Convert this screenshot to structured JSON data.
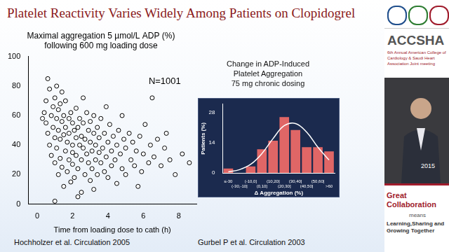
{
  "slide": {
    "title": "Platelet Reactivity Varies Widely Among Patients on Clopidogrel"
  },
  "sidebar": {
    "brand": "ACCSHA",
    "event": "6th Annual American College of Cardiology & Saudi Heart Association Joint meeting",
    "date": "2015",
    "slogan": "Great Collaboration",
    "slogan_joiner": "means",
    "slogan_tail": "Learning,Sharing and Growing Together"
  },
  "chart_data": [
    {
      "type": "scatter",
      "title": [
        "Maximal aggregation 5 µmol/L ADP (%)",
        "following 600 mg loading dose"
      ],
      "x_label": "Time from loading dose to cath (h)",
      "source": "Hochholzer et al. Circulation 2005",
      "x": [
        0.4,
        0.5,
        0.5,
        0.6,
        0.6,
        0.7,
        0.7,
        0.8,
        0.8,
        0.9,
        0.9,
        1.0,
        1.0,
        1.0,
        1.1,
        1.1,
        1.2,
        1.2,
        1.2,
        1.3,
        1.3,
        1.3,
        1.4,
        1.4,
        1.5,
        1.5,
        1.5,
        1.6,
        1.6,
        1.6,
        1.7,
        1.7,
        1.8,
        1.8,
        1.8,
        1.9,
        1.9,
        2.0,
        2.0,
        2.0,
        2.0,
        2.1,
        2.1,
        2.2,
        2.2,
        2.2,
        2.3,
        2.3,
        2.4,
        2.4,
        2.5,
        2.5,
        2.5,
        2.6,
        2.6,
        2.7,
        2.7,
        2.8,
        2.8,
        2.9,
        2.9,
        3.0,
        3.0,
        3.0,
        3.1,
        3.1,
        3.2,
        3.2,
        3.3,
        3.3,
        3.4,
        3.4,
        3.5,
        3.5,
        3.6,
        3.6,
        3.7,
        3.8,
        3.8,
        3.9,
        4.0,
        4.0,
        4.1,
        4.2,
        4.2,
        4.3,
        4.4,
        4.5,
        4.5,
        4.6,
        4.7,
        4.8,
        4.9,
        5.0,
        5.0,
        5.2,
        5.3,
        5.4,
        5.5,
        5.6,
        5.8,
        5.9,
        6.0,
        6.1,
        6.3,
        6.4,
        6.6,
        6.8,
        7.0,
        7.2,
        7.5,
        7.8,
        8.2,
        8.6,
        1.0,
        2.3,
        1.1,
        0.3,
        6.5,
        4.8,
        3.9,
        7.3,
        5.7,
        2.6,
        1.4,
        3.2
      ],
      "values": [
        62,
        70,
        55,
        48,
        85,
        78,
        40,
        60,
        33,
        66,
        52,
        45,
        72,
        28,
        58,
        38,
        64,
        50,
        20,
        44,
        68,
        31,
        56,
        25,
        60,
        47,
        12,
        36,
        52,
        70,
        42,
        22,
        58,
        30,
        48,
        15,
        62,
        40,
        55,
        27,
        35,
        50,
        18,
        45,
        65,
        33,
        24,
        52,
        40,
        58,
        30,
        46,
        8,
        38,
        55,
        20,
        44,
        62,
        34,
        28,
        50,
        42,
        16,
        56,
        36,
        24,
        48,
        60,
        30,
        40,
        20,
        52,
        35,
        45,
        28,
        58,
        38,
        22,
        48,
        32,
        42,
        18,
        54,
        36,
        26,
        46,
        30,
        40,
        14,
        50,
        34,
        24,
        44,
        38,
        20,
        48,
        30,
        42,
        26,
        36,
        46,
        22,
        34,
        54,
        28,
        40,
        32,
        44,
        26,
        38,
        30,
        20,
        34,
        28,
        2,
        5,
        80,
        58,
        72,
        60,
        66,
        48,
        12,
        72,
        76,
        10
      ],
      "color": "#000000",
      "marker": "circle",
      "xlim": [
        -0.5,
        9
      ],
      "xticks": [
        0,
        2,
        4,
        6,
        8
      ],
      "ylim": [
        0,
        100
      ],
      "yticks": [
        0,
        20,
        40,
        60,
        80,
        100
      ],
      "grid": false,
      "annotations": [
        {
          "text": "N=1001",
          "x": 6.3,
          "y": 83
        }
      ]
    },
    {
      "type": "bar",
      "title": [
        "Change in ADP-Induced",
        "Platelet Aggregation",
        "75 mg chronic dosing"
      ],
      "x_label": "Δ Aggregation (%)",
      "y_label": "Patients (%)",
      "source": "Gurbel P et al. Circulation 2003",
      "categories": [
        "≤-30",
        "(-30,-10]",
        "(-10,0]",
        "(0,10]",
        "(10,20]",
        "(20,30]",
        "(30,40]",
        "(40,50]",
        "(50,60]",
        ">60"
      ],
      "series": [
        {
          "type": "bar",
          "color": "#e06666",
          "values": [
            2,
            0,
            3,
            11,
            15,
            26,
            20,
            12,
            12,
            10
          ]
        },
        {
          "type": "line",
          "color": "#ffffff",
          "marker": "none",
          "values": [
            0.5,
            1.5,
            4,
            9,
            16,
            22,
            23,
            19,
            12,
            6
          ]
        }
      ],
      "ylim": [
        0,
        32
      ],
      "yticks": [
        0,
        14,
        28
      ],
      "grid": false
    }
  ]
}
